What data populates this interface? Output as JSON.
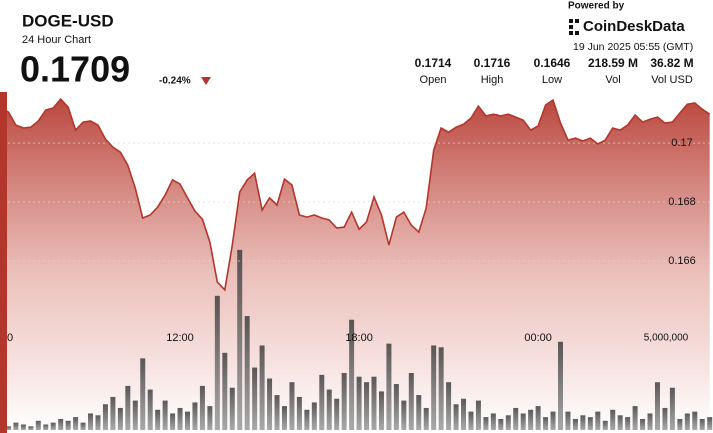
{
  "header": {
    "symbol": "DOGE-USD",
    "subtitle": "24 Hour Chart",
    "price": "0.1709",
    "change": "-0.24%",
    "powered_by": "Powered by",
    "brand": "CoinDeskData",
    "timestamp": "19 Jun 2025 05:55 (GMT)"
  },
  "stats": [
    {
      "value": "0.1714",
      "label": "Open"
    },
    {
      "value": "0.1716",
      "label": "High"
    },
    {
      "value": "0.1646",
      "label": "Low"
    },
    {
      "value": "218.59 M",
      "label": "Vol"
    },
    {
      "value": "36.82 M",
      "label": "Vol USD"
    }
  ],
  "chart_data": {
    "type": "line",
    "categories": [
      "0",
      null,
      null,
      null,
      null,
      null,
      null,
      null,
      null,
      null,
      null,
      null,
      null,
      null,
      null,
      null,
      null,
      null,
      null,
      null,
      null,
      null,
      null,
      null,
      "12:00",
      null,
      null,
      null,
      null,
      null,
      null,
      null,
      null,
      null,
      null,
      null,
      null,
      null,
      null,
      null,
      null,
      null,
      null,
      null,
      null,
      null,
      null,
      null,
      "18:00",
      null,
      null,
      null,
      null,
      null,
      null,
      null,
      null,
      null,
      null,
      null,
      null,
      null,
      null,
      null,
      null,
      null,
      null,
      null,
      null,
      null,
      null,
      null,
      "00:00",
      null,
      null,
      null,
      null,
      null,
      null,
      null,
      null,
      null,
      null,
      null,
      null,
      null,
      null,
      null,
      null,
      null,
      null,
      null,
      null,
      null,
      null,
      null
    ],
    "series": [
      {
        "color": "#b3362c",
        "values": [
          0.17119,
          0.17105,
          0.17061,
          0.17051,
          0.17054,
          0.17075,
          0.17112,
          0.17119,
          0.17149,
          0.17122,
          0.17044,
          0.17071,
          0.17075,
          0.17061,
          0.17014,
          0.16986,
          0.16969,
          0.16925,
          0.16847,
          0.16746,
          0.16756,
          0.16783,
          0.16824,
          0.16875,
          0.16861,
          0.16814,
          0.16769,
          0.16742,
          0.16664,
          0.16529,
          0.16502,
          0.16654,
          0.16834,
          0.16875,
          0.16898,
          0.16773,
          0.16814,
          0.1679,
          0.16878,
          0.16858,
          0.16756,
          0.16749,
          0.16756,
          0.16746,
          0.16739,
          0.16712,
          0.16715,
          0.16766,
          0.16708,
          0.16732,
          0.16817,
          0.16756,
          0.16654,
          0.16749,
          0.16766,
          0.16722,
          0.16698,
          0.1678,
          0.16976,
          0.17051,
          0.17037,
          0.17054,
          0.17064,
          0.17085,
          0.17125,
          0.17092,
          0.17098,
          0.17092,
          0.17098,
          0.17088,
          0.17078,
          0.17044,
          0.17058,
          0.17129,
          0.17146,
          0.17068,
          0.1701,
          0.17017,
          0.17007,
          0.17017,
          0.16997,
          0.1701,
          0.17051,
          0.17044,
          0.17061,
          0.17095,
          0.17071,
          0.17081,
          0.17088,
          0.17068,
          0.17071,
          0.17102,
          0.17132,
          0.17136,
          0.17115,
          0.17098
        ]
      },
      {
        "color": "#5c5c5c",
        "axis": "y2",
        "values": [
          300000,
          200000,
          400000,
          300000,
          200000,
          500000,
          300000,
          400000,
          600000,
          500000,
          700000,
          400000,
          900000,
          800000,
          1400000,
          1800000,
          1200000,
          2400000,
          1600000,
          3900000,
          2200000,
          1100000,
          1600000,
          900000,
          1200000,
          1000000,
          1500000,
          2400000,
          1300000,
          7300000,
          4200000,
          2300000,
          9800000,
          6200000,
          3400000,
          4600000,
          2800000,
          1900000,
          1300000,
          2600000,
          1800000,
          1100000,
          1500000,
          3000000,
          2200000,
          1700000,
          3100000,
          6000000,
          2900000,
          2600000,
          2900000,
          2100000,
          4700000,
          2500000,
          1600000,
          3100000,
          1900000,
          1200000,
          4600000,
          4500000,
          2600000,
          1400000,
          1700000,
          1000000,
          1600000,
          700000,
          900000,
          600000,
          800000,
          1200000,
          900000,
          1100000,
          1300000,
          700000,
          1000000,
          4800000,
          1000000,
          600000,
          800000,
          700000,
          1000000,
          500000,
          1100000,
          800000,
          700000,
          1300000,
          600000,
          900000,
          2600000,
          1200000,
          2300000,
          600000,
          900000,
          1000000,
          600000,
          700000
        ]
      }
    ],
    "ylim": [
      0.16027,
      0.1718
    ],
    "yticks": [
      0.166,
      0.168,
      0.17
    ],
    "y2lim": [
      0,
      18500000
    ],
    "y2ticks": [
      {
        "value": 5000000,
        "label": "5,000,000"
      }
    ],
    "grid": true
  }
}
